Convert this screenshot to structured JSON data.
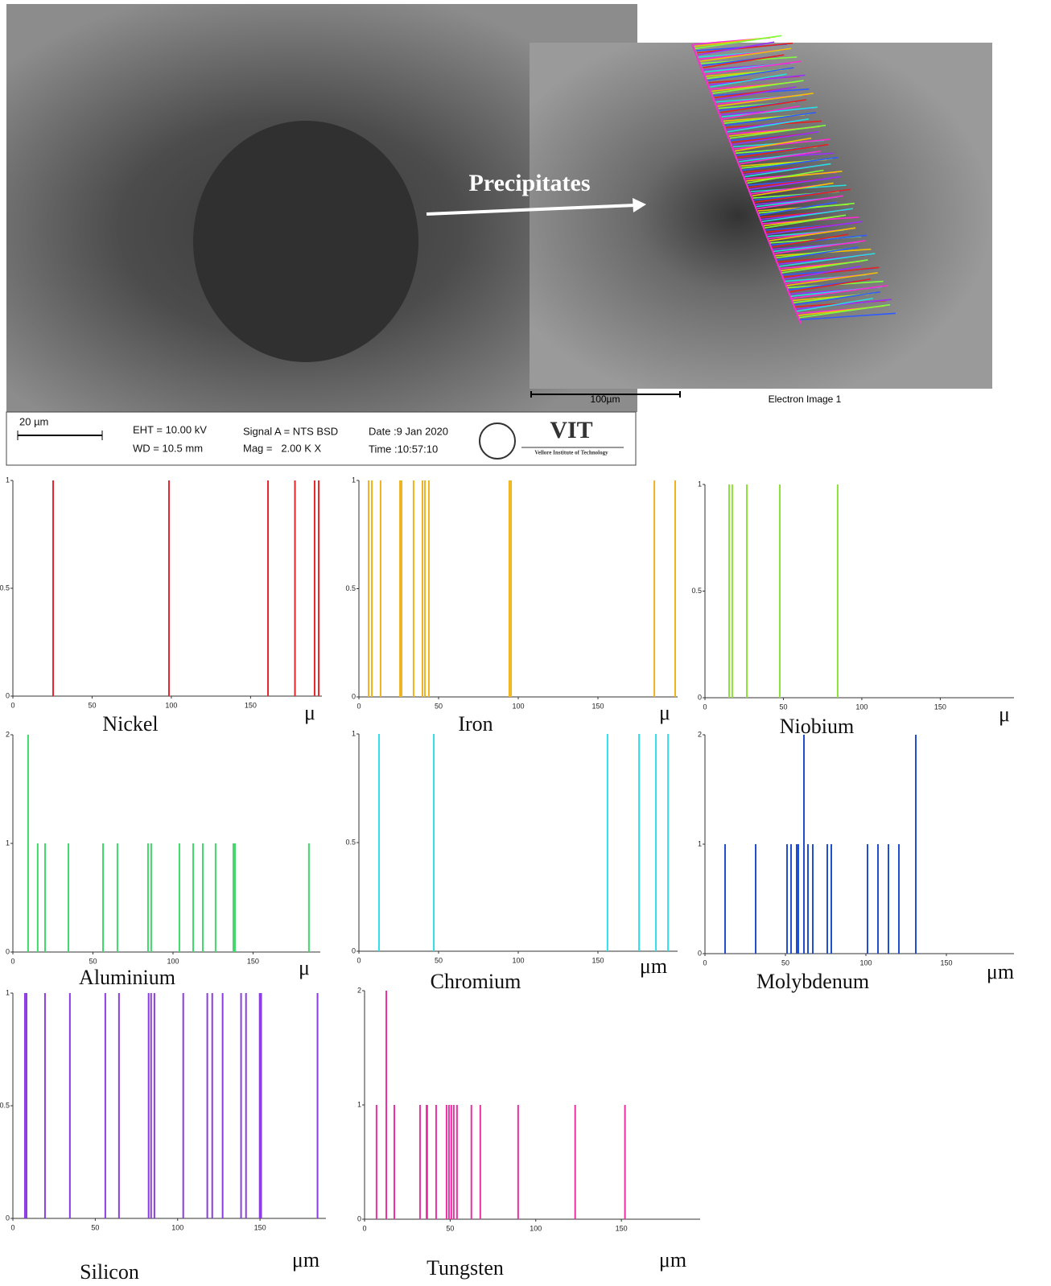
{
  "sem_image": {
    "annotation": "Precipitates",
    "eds_scale": "100µm",
    "eds_caption": "Electron Image 1",
    "scale": "20 µm",
    "eht": "EHT = 10.00 kV",
    "wd": "WD = 10.5 mm",
    "signal": "Signal A = NTS BSD",
    "mag": "Mag =   2.00 K X",
    "date": "Date :9 Jan 2020",
    "time": "Time :10:57:10",
    "logo": "VIT",
    "institute": "Vellore Institute of Technology"
  },
  "chart_data": [
    {
      "type": "stem",
      "title": "Nickel",
      "x_label": "μ",
      "color": "#e8232a",
      "x": [
        25.4,
        98.5,
        161,
        178,
        190.4,
        193
      ],
      "values": [
        1,
        1,
        1,
        1,
        1,
        1
      ],
      "xlim": [
        0,
        195
      ],
      "ylim": [
        0,
        1
      ],
      "xticks": [
        0,
        50,
        100,
        150
      ],
      "yticks": [
        0,
        0.5,
        1
      ]
    },
    {
      "type": "stem",
      "title": "Iron",
      "x_label": "μ",
      "color": "#f0b21a",
      "x": [
        6.1,
        8.1,
        13.6,
        25.8,
        26.8,
        34.3,
        39.9,
        41.4,
        43.9,
        94.4,
        95.5,
        185.4,
        198.5
      ],
      "values": [
        1,
        1,
        1,
        1,
        1,
        1,
        1,
        1,
        1,
        1,
        1,
        1,
        1
      ],
      "xlim": [
        0,
        200
      ],
      "ylim": [
        0,
        1
      ],
      "xticks": [
        0,
        50,
        100,
        150
      ],
      "yticks": [
        0,
        0.5,
        1
      ]
    },
    {
      "type": "stem",
      "title": "Niobium",
      "x_label": "μ",
      "color": "#8ee03a",
      "x": [
        15.4,
        17.4,
        26.7,
        47.7,
        84.6
      ],
      "values": [
        1,
        1,
        1,
        1,
        1
      ],
      "xlim": [
        0,
        197
      ],
      "ylim": [
        0,
        1
      ],
      "xticks": [
        0,
        50,
        100,
        150
      ],
      "yticks": [
        0,
        0.5,
        1
      ]
    },
    {
      "type": "stem",
      "title": "Aluminium",
      "x_label": "μ",
      "color": "#3fd96a",
      "x": [
        9.5,
        15.5,
        20.1,
        34.7,
        56.3,
        65.3,
        84.4,
        86.4,
        104,
        112.6,
        118.6,
        126.6,
        137.7,
        138.7,
        184.9
      ],
      "values": [
        2,
        1,
        1,
        1,
        1,
        1,
        1,
        1,
        1,
        1,
        1,
        1,
        1,
        1,
        1
      ],
      "xlim": [
        0,
        192
      ],
      "ylim": [
        0,
        2
      ],
      "xticks": [
        0,
        50,
        100,
        150
      ],
      "yticks": [
        0,
        1,
        2
      ]
    },
    {
      "type": "stem",
      "title": "Chromium",
      "x_label": "μm",
      "color": "#33dcea",
      "x": [
        12.6,
        47,
        156,
        175.8,
        186.4,
        194
      ],
      "values": [
        1,
        1,
        1,
        1,
        1,
        1
      ],
      "xlim": [
        0,
        200
      ],
      "ylim": [
        0,
        1
      ],
      "xticks": [
        0,
        50,
        100,
        150
      ],
      "yticks": [
        0,
        0.5,
        1
      ]
    },
    {
      "type": "stem",
      "title": "Molybdenum",
      "x_label": "μm",
      "color": "#1f4fd0",
      "x": [
        12.5,
        31.5,
        51,
        53.5,
        57,
        58,
        61.5,
        64,
        67,
        76,
        78.5,
        101,
        107.5,
        114,
        120.5,
        131
      ],
      "values": [
        1,
        1,
        1,
        1,
        1,
        1,
        2,
        1,
        1,
        1,
        1,
        1,
        1,
        1,
        1,
        2
      ],
      "xlim": [
        0,
        192
      ],
      "ylim": [
        0,
        2
      ],
      "xticks": [
        0,
        50,
        100,
        150
      ],
      "yticks": [
        0,
        1,
        2
      ]
    },
    {
      "type": "stem",
      "title": "Silicon",
      "x_label": "μm",
      "color": "#8b3ce0",
      "x": [
        7.3,
        8.3,
        19.5,
        34.6,
        56.1,
        64.4,
        82.4,
        83.9,
        85.9,
        103.4,
        118,
        121,
        127.3,
        138.5,
        141.5,
        149.8,
        150.7,
        184.9
      ],
      "values": [
        1,
        1,
        1,
        1,
        1,
        1,
        1,
        1,
        1,
        1,
        1,
        1,
        1,
        1,
        1,
        1,
        1,
        1
      ],
      "xlim": [
        0,
        190
      ],
      "ylim": [
        0,
        1
      ],
      "xticks": [
        0,
        50,
        100,
        150
      ],
      "yticks": [
        0,
        0.5,
        1
      ]
    },
    {
      "type": "stem",
      "title": "Tungsten",
      "x_label": "μm",
      "color": "#ec2fa5",
      "x": [
        7,
        12.7,
        17.4,
        32.4,
        36.2,
        36.6,
        41.8,
        47.9,
        49.3,
        50.7,
        52.1,
        54,
        62.4,
        67.6,
        89.7,
        123,
        152.1
      ],
      "values": [
        1,
        2,
        1,
        1,
        1,
        1,
        1,
        1,
        1,
        1,
        1,
        1,
        1,
        1,
        1,
        1,
        1
      ],
      "xlim": [
        0,
        196
      ],
      "ylim": [
        0,
        2
      ],
      "xticks": [
        0,
        50,
        100,
        150
      ],
      "yticks": [
        0,
        1,
        2
      ]
    }
  ]
}
